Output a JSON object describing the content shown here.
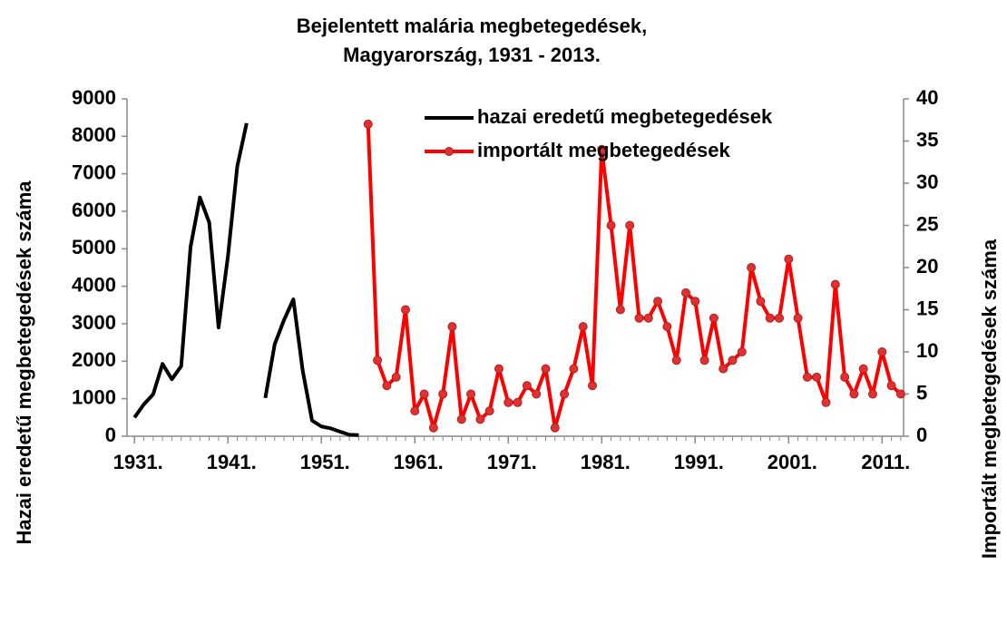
{
  "chart_data": {
    "type": "line",
    "title": "Bejelentett malária megbetegedések,",
    "subtitle": "Magyarország,  1931 - 2013.",
    "ylabel": "Hazai eredetű megbetegedések száma",
    "y2label": "Importált megbetegedések száma",
    "x": [
      1931,
      1932,
      1933,
      1934,
      1935,
      1936,
      1937,
      1938,
      1939,
      1940,
      1941,
      1942,
      1943,
      1944,
      1945,
      1946,
      1947,
      1948,
      1949,
      1950,
      1951,
      1952,
      1953,
      1954,
      1955,
      1956,
      1957,
      1958,
      1959,
      1960,
      1961,
      1962,
      1963,
      1964,
      1965,
      1966,
      1967,
      1968,
      1969,
      1970,
      1971,
      1972,
      1973,
      1974,
      1975,
      1976,
      1977,
      1978,
      1979,
      1980,
      1981,
      1982,
      1983,
      1984,
      1985,
      1986,
      1987,
      1988,
      1989,
      1990,
      1991,
      1992,
      1993,
      1994,
      1995,
      1996,
      1997,
      1998,
      1999,
      2000,
      2001,
      2002,
      2003,
      2004,
      2005,
      2006,
      2007,
      2008,
      2009,
      2010,
      2011,
      2012,
      2013
    ],
    "series": [
      {
        "name": "hazai eredetű megbetegedések",
        "color": "#000000",
        "axis": "y",
        "marker": false,
        "values": [
          500,
          850,
          1120,
          1930,
          1520,
          1870,
          5050,
          6370,
          5700,
          2900,
          4800,
          7200,
          8350,
          null,
          1020,
          2450,
          3100,
          3650,
          1750,
          420,
          260,
          210,
          120,
          40,
          30,
          null,
          null,
          null,
          null,
          null,
          null,
          null,
          null,
          null,
          null,
          null,
          null,
          null,
          null,
          null,
          null,
          null,
          null,
          null,
          null,
          null,
          null,
          null,
          null,
          null,
          null,
          null,
          null,
          null,
          null,
          null,
          null,
          null,
          null,
          null,
          null,
          null,
          null,
          null,
          null,
          null,
          null,
          null,
          null,
          null,
          null,
          null,
          null,
          null,
          null,
          null,
          null,
          null,
          null,
          null,
          null,
          null,
          null
        ]
      },
      {
        "name": "importált megbetegedések",
        "color": "#ff0000",
        "axis": "y2",
        "marker": true,
        "values": [
          null,
          null,
          null,
          null,
          null,
          null,
          null,
          null,
          null,
          null,
          null,
          null,
          null,
          null,
          null,
          null,
          null,
          null,
          null,
          null,
          null,
          null,
          null,
          null,
          null,
          37,
          9,
          6,
          7,
          15,
          3,
          5,
          1,
          5,
          13,
          2,
          5,
          2,
          3,
          8,
          4,
          4,
          6,
          5,
          8,
          1,
          5,
          8,
          13,
          6,
          34,
          25,
          15,
          25,
          14,
          14,
          16,
          13,
          9,
          17,
          16,
          9,
          14,
          8,
          9,
          10,
          20,
          16,
          14,
          14,
          21,
          14,
          7,
          7,
          4,
          18,
          7,
          5,
          8,
          5,
          10,
          6,
          5
        ]
      }
    ],
    "xlim": [
      1930.2,
      2013.3
    ],
    "xticks": [
      {
        "value": 1931,
        "label": "1931."
      },
      {
        "value": 1941,
        "label": "1941."
      },
      {
        "value": 1951,
        "label": "1951."
      },
      {
        "value": 1961,
        "label": "1961."
      },
      {
        "value": 1971,
        "label": "1971."
      },
      {
        "value": 1981,
        "label": "1981."
      },
      {
        "value": 1991,
        "label": "1991."
      },
      {
        "value": 2001,
        "label": "2001."
      },
      {
        "value": 2011,
        "label": "2011."
      }
    ],
    "ylim": [
      0,
      9000
    ],
    "yticks": [
      0,
      1000,
      2000,
      3000,
      4000,
      5000,
      6000,
      7000,
      8000,
      9000
    ],
    "y2lim": [
      0,
      40
    ],
    "y2ticks": [
      0,
      5,
      10,
      15,
      20,
      25,
      30,
      35,
      40
    ],
    "grid": false,
    "legend": "top"
  }
}
